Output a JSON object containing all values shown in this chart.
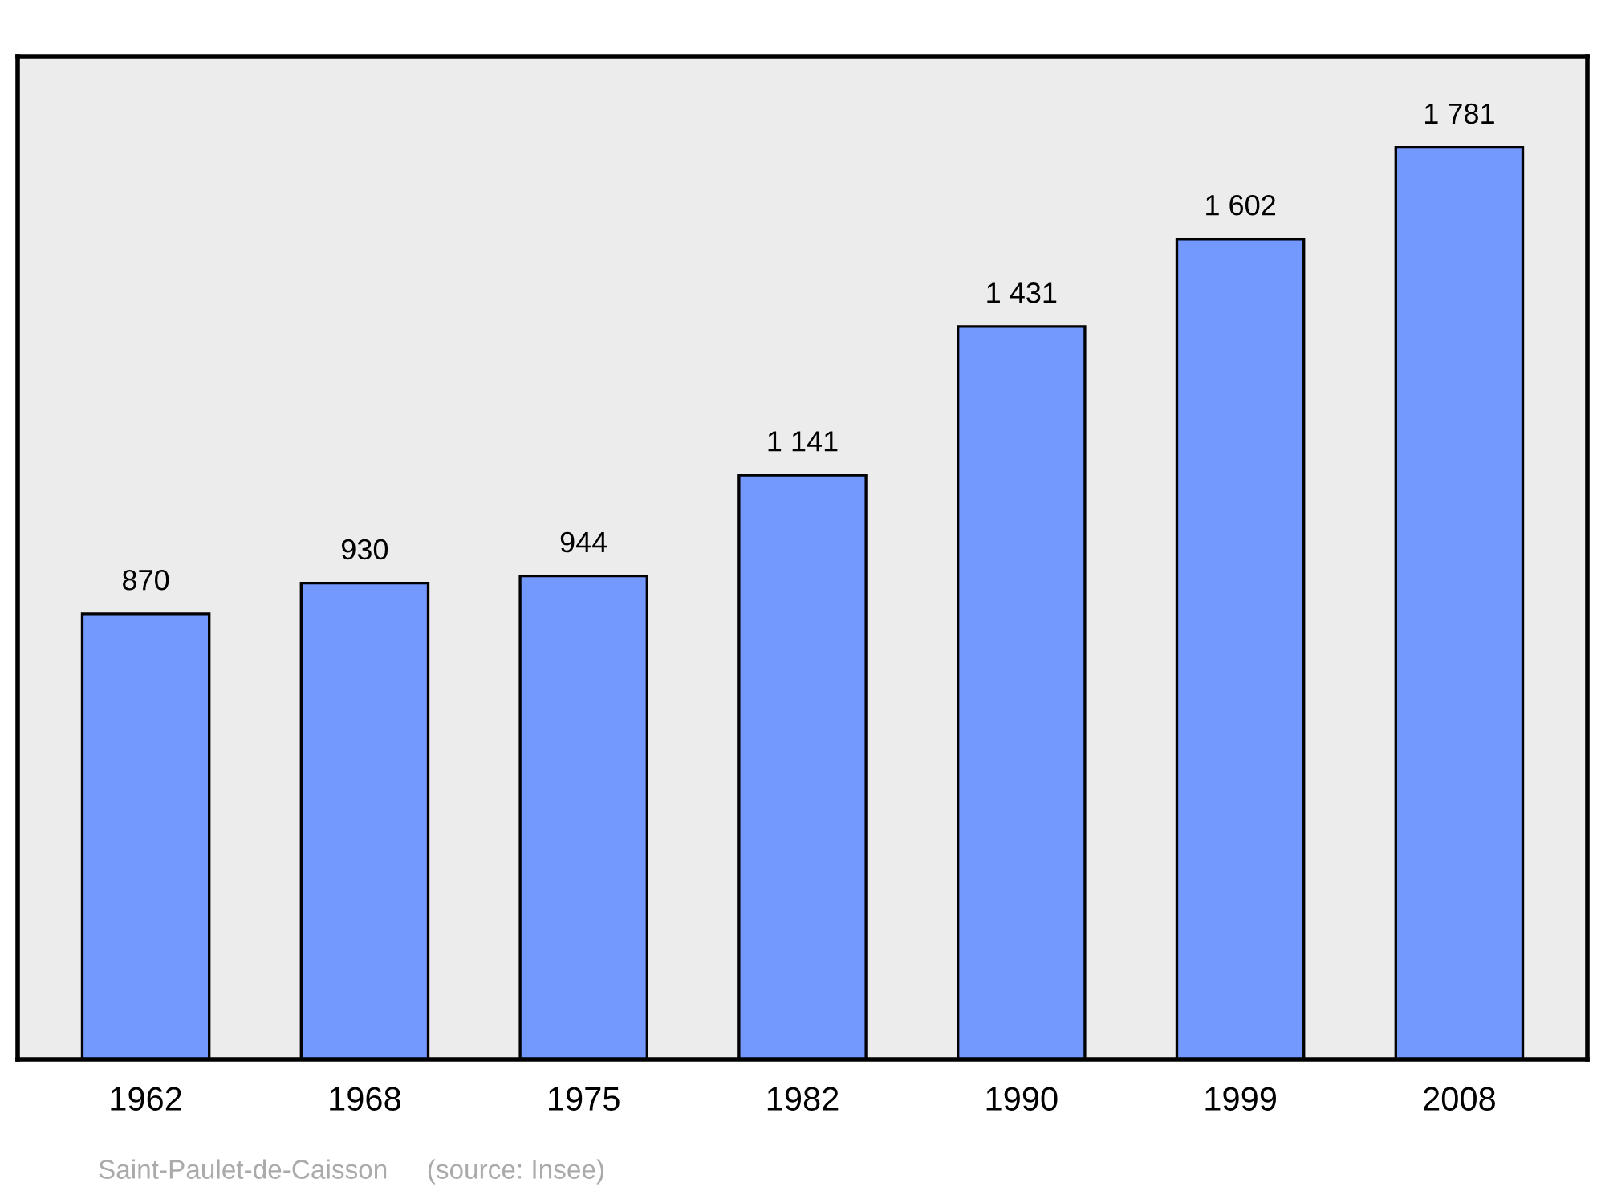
{
  "chart_data": {
    "type": "bar",
    "categories": [
      "1962",
      "1968",
      "1975",
      "1982",
      "1990",
      "1999",
      "2008"
    ],
    "values": [
      870,
      930,
      944,
      1141,
      1431,
      1602,
      1781
    ],
    "value_labels": [
      "870",
      "930",
      "944",
      "1 141",
      "1 431",
      "1 602",
      "1 781"
    ],
    "color": "#7399ff",
    "grid": false,
    "annotations": [
      "Saint-Paulet-de-Caisson",
      "(source: Insee)"
    ]
  }
}
